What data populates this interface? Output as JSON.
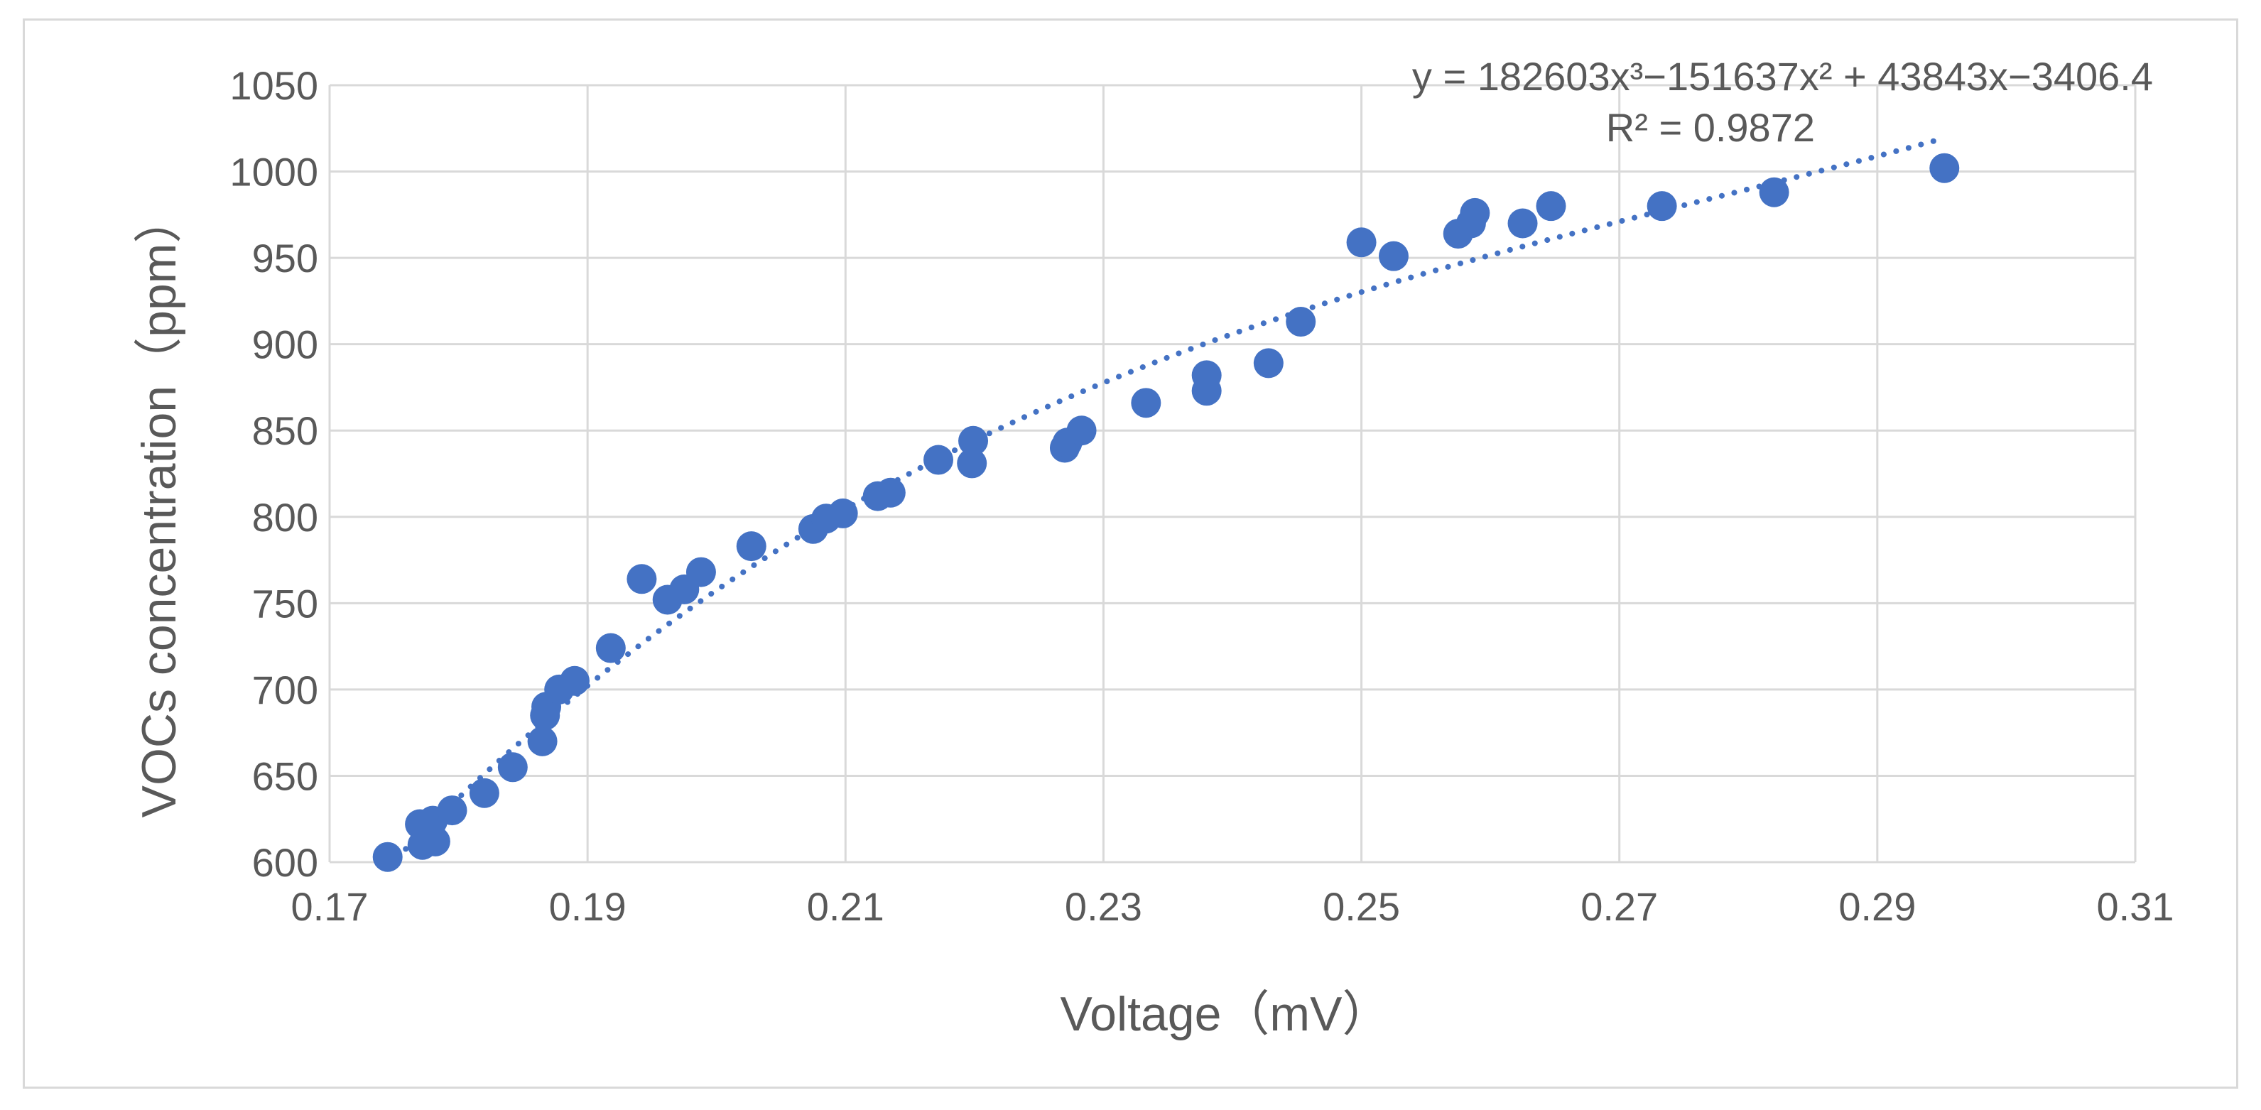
{
  "chart_data": {
    "type": "scatter",
    "title": "",
    "xlabel": "Voltage（mV）",
    "ylabel": "VOCs concentration（ppm）",
    "xlim": [
      0.17,
      0.31
    ],
    "ylim": [
      600,
      1050
    ],
    "xticks": [
      0.17,
      0.19,
      0.21,
      0.23,
      0.25,
      0.27,
      0.29,
      0.31
    ],
    "xtick_labels": [
      "0.17",
      "0.19",
      "0.21",
      "0.23",
      "0.25",
      "0.27",
      "0.29",
      "0.31"
    ],
    "yticks": [
      600,
      650,
      700,
      750,
      800,
      850,
      900,
      950,
      1000,
      1050
    ],
    "ytick_labels": [
      "600",
      "650",
      "700",
      "750",
      "800",
      "850",
      "900",
      "950",
      "1000",
      "1050"
    ],
    "grid": true,
    "legend": "none",
    "color": "#4472c4",
    "series": [
      {
        "name": "VOCs concentration",
        "x": [
          0.1745,
          0.177,
          0.1772,
          0.1775,
          0.1778,
          0.178,
          0.1782,
          0.1795,
          0.182,
          0.1842,
          0.1865,
          0.1867,
          0.1868,
          0.1878,
          0.189,
          0.1918,
          0.1942,
          0.1962,
          0.1975,
          0.1988,
          0.2027,
          0.2075,
          0.2085,
          0.2098,
          0.2125,
          0.2135,
          0.2172,
          0.2198,
          0.2199,
          0.227,
          0.2272,
          0.2283,
          0.2333,
          0.238,
          0.238,
          0.2428,
          0.2453,
          0.25,
          0.2525,
          0.2575,
          0.2585,
          0.2588,
          0.2625,
          0.2647,
          0.2733,
          0.282,
          0.2952
        ],
        "y": [
          603,
          622,
          610,
          615,
          618,
          624,
          612,
          630,
          640,
          655,
          670,
          685,
          690,
          700,
          705,
          724,
          764,
          752,
          758,
          768,
          783,
          793,
          799,
          802,
          812,
          814,
          833,
          831,
          844,
          840,
          843,
          850,
          866,
          873,
          882,
          889,
          913,
          959,
          951,
          964,
          970,
          976,
          970,
          980,
          980,
          988,
          1002
        ]
      }
    ],
    "trendline": {
      "type": "polynomial",
      "degree": 3,
      "coefficients": [
        182603,
        -151637,
        43843,
        -3406.4
      ],
      "x_range": [
        0.1745,
        0.2952
      ],
      "style": "dotted"
    },
    "annotations": {
      "equation": "y = 182603x³−151637x² + 43843x−3406.4",
      "r_squared": "R² = 0.9872"
    }
  }
}
